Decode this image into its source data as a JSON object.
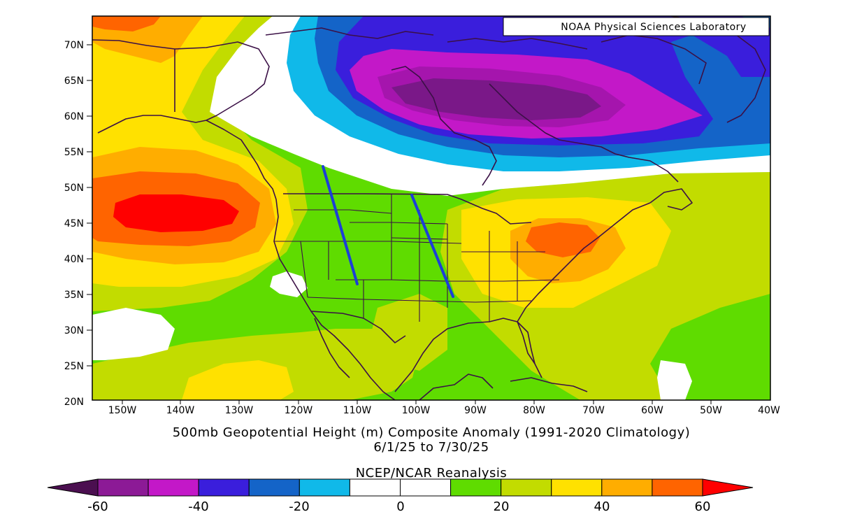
{
  "credit": "NOAA Physical Sciences Laboratory",
  "title_line1": "500mb Geopotential Height (m) Composite Anomaly (1991-2020 Climatology)",
  "title_line2": "6/1/25  to 7/30/25",
  "source": "NCEP/NCAR Reanalysis",
  "lat_labels": [
    "70N",
    "65N",
    "60N",
    "55N",
    "50N",
    "45N",
    "40N",
    "35N",
    "30N",
    "25N",
    "20N"
  ],
  "lon_labels": [
    "150W",
    "140W",
    "130W",
    "120W",
    "110W",
    "100W",
    "90W",
    "80W",
    "70W",
    "60W",
    "50W",
    "40W"
  ],
  "colorbar": {
    "labels": [
      "-60",
      "-40",
      "-20",
      "0",
      "20",
      "40",
      "60"
    ],
    "colors": [
      "#4b0f50",
      "#8c1a96",
      "#c318c8",
      "#3a1edc",
      "#1464c8",
      "#10b9e9",
      "#ffffff",
      "#ffffff",
      "#5fdc00",
      "#c2dc00",
      "#ffe100",
      "#ffad00",
      "#ff6400",
      "#ff0000"
    ]
  },
  "palette": {
    "deep_purple": "#7a1888",
    "purple": "#a515ad",
    "magenta": "#c318c8",
    "indigo": "#3a1edc",
    "blue": "#1464c8",
    "cyan": "#10b9e9",
    "white": "#ffffff",
    "green": "#5fdc00",
    "yellow_green": "#c2dc00",
    "yellow": "#ffe100",
    "orange": "#ffad00",
    "red_orange": "#ff6400",
    "red": "#ff0000",
    "coast": "#3b1046",
    "trough_line": "#1c3fd8"
  }
}
